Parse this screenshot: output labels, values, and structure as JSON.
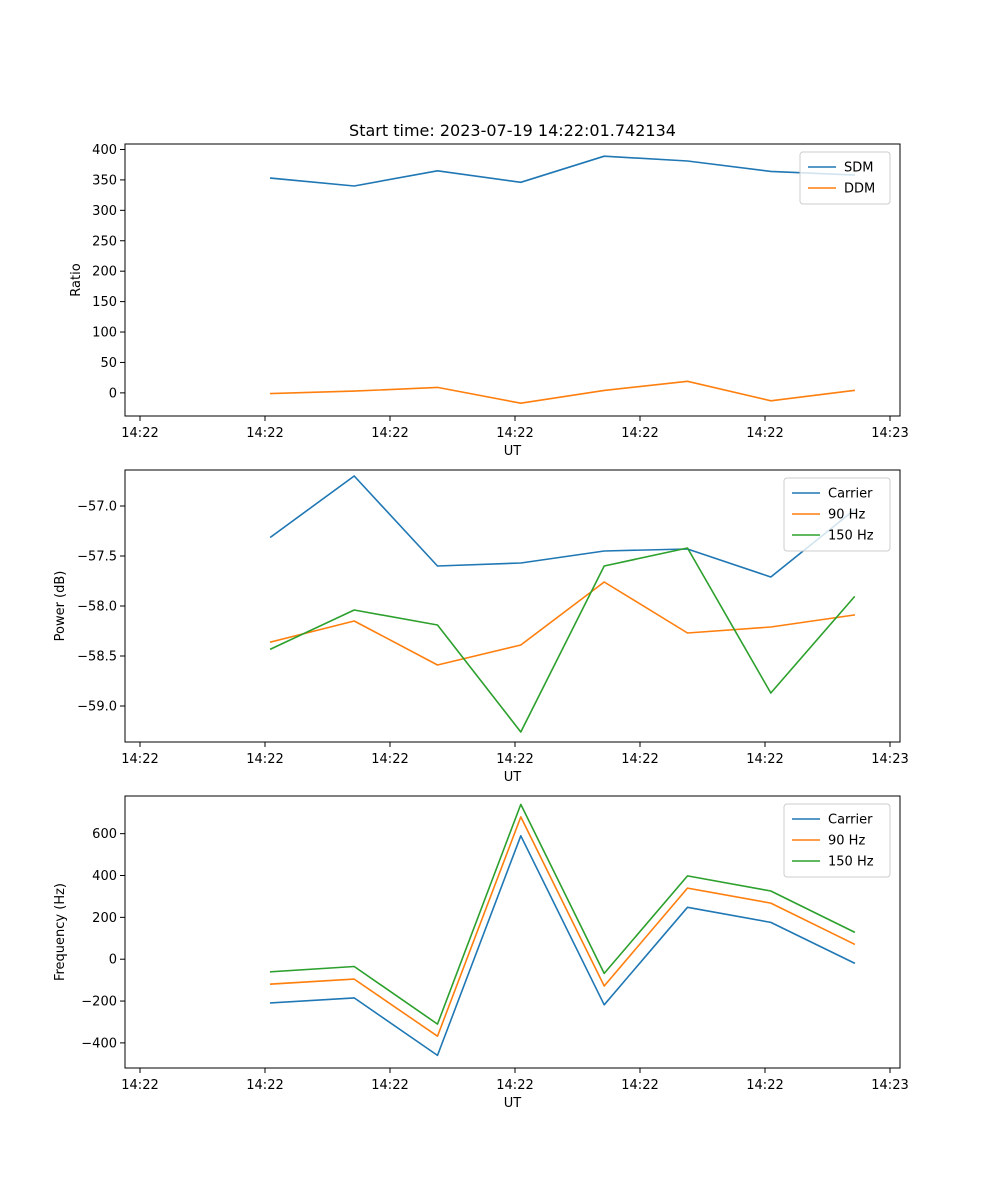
{
  "title": "Start time: 2023-07-19 14:22:01.742134",
  "colors": {
    "C0": "#1f77b4",
    "C1": "#ff7f0e",
    "C2": "#2ca02c",
    "axis": "#000000",
    "background": "#ffffff"
  },
  "chart_data": [
    {
      "type": "line",
      "title": "Start time: 2023-07-19 14:22:01.742134",
      "xlabel": "UT",
      "ylabel": "Ratio",
      "legend": "top-right",
      "grid": false,
      "x": [
        1,
        2,
        3,
        4,
        5,
        6,
        7,
        8
      ],
      "xlim": [
        -0.75,
        8.55
      ],
      "xticks": [
        -0.57,
        0.93,
        2.43,
        3.93,
        5.43,
        6.93,
        8.43
      ],
      "xtick_labels": [
        "14:22",
        "14:22",
        "14:22",
        "14:22",
        "14:22",
        "14:22",
        "14:23"
      ],
      "ylim": [
        -38,
        409
      ],
      "yticks": [
        0,
        50,
        100,
        150,
        200,
        250,
        300,
        350,
        400
      ],
      "ytick_labels": [
        "0",
        "50",
        "100",
        "150",
        "200",
        "250",
        "300",
        "350",
        "400"
      ],
      "series": [
        {
          "name": "SDM",
          "color": "C0",
          "values": [
            353,
            340,
            365,
            346,
            389,
            381,
            364,
            358
          ]
        },
        {
          "name": "DDM",
          "color": "C1",
          "values": [
            -1,
            3,
            9,
            -17,
            4,
            19,
            -13,
            4
          ]
        }
      ]
    },
    {
      "type": "line",
      "title": "",
      "xlabel": "UT",
      "ylabel": "Power (dB)",
      "legend": "top-right",
      "grid": false,
      "x": [
        1,
        2,
        3,
        4,
        5,
        6,
        7,
        8
      ],
      "xlim": [
        -0.75,
        8.55
      ],
      "xticks": [
        -0.57,
        0.93,
        2.43,
        3.93,
        5.43,
        6.93,
        8.43
      ],
      "xtick_labels": [
        "14:22",
        "14:22",
        "14:22",
        "14:22",
        "14:22",
        "14:22",
        "14:23"
      ],
      "ylim": [
        -59.36,
        -56.64
      ],
      "yticks": [
        -59.0,
        -58.5,
        -58.0,
        -57.5,
        -57.0
      ],
      "ytick_labels": [
        "−59.0",
        "−58.5",
        "−58.0",
        "−57.5",
        "−57.0"
      ],
      "series": [
        {
          "name": "Carrier",
          "color": "C0",
          "values": [
            -57.31,
            -56.7,
            -57.6,
            -57.57,
            -57.45,
            -57.43,
            -57.71,
            -57.04
          ]
        },
        {
          "name": "90 Hz",
          "color": "C1",
          "values": [
            -58.36,
            -58.15,
            -58.59,
            -58.39,
            -57.76,
            -58.27,
            -58.21,
            -58.09
          ]
        },
        {
          "name": "150 Hz",
          "color": "C2",
          "values": [
            -58.43,
            -58.04,
            -58.19,
            -59.26,
            -57.6,
            -57.42,
            -58.87,
            -57.91
          ]
        }
      ]
    },
    {
      "type": "line",
      "title": "",
      "xlabel": "UT",
      "ylabel": "Frequency (Hz)",
      "legend": "top-right",
      "grid": false,
      "x": [
        1,
        2,
        3,
        4,
        5,
        6,
        7,
        8
      ],
      "xlim": [
        -0.75,
        8.55
      ],
      "xticks": [
        -0.57,
        0.93,
        2.43,
        3.93,
        5.43,
        6.93,
        8.43
      ],
      "xtick_labels": [
        "14:22",
        "14:22",
        "14:22",
        "14:22",
        "14:22",
        "14:22",
        "14:23"
      ],
      "ylim": [
        -520,
        780
      ],
      "yticks": [
        -400,
        -200,
        0,
        200,
        400,
        600
      ],
      "ytick_labels": [
        "−400",
        "−200",
        "0",
        "200",
        "400",
        "600"
      ],
      "series": [
        {
          "name": "Carrier",
          "color": "C0",
          "values": [
            -209,
            -185,
            -460,
            590,
            -218,
            248,
            176,
            -18
          ]
        },
        {
          "name": "90 Hz",
          "color": "C1",
          "values": [
            -119,
            -95,
            -368,
            680,
            -128,
            340,
            268,
            72
          ]
        },
        {
          "name": "150 Hz",
          "color": "C2",
          "values": [
            -60,
            -35,
            -310,
            740,
            -68,
            398,
            326,
            130
          ]
        }
      ]
    }
  ]
}
